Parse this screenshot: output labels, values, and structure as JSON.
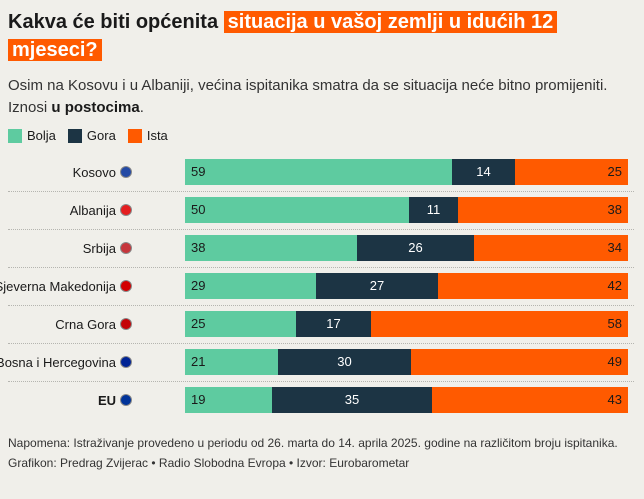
{
  "header": {
    "title_plain": "Kakva će biti općenita ",
    "title_highlight": "situacija u vašoj zemlji u idućih 12 mjeseci?",
    "subtitle_line1": "Osim na Kosovu i u Albaniji, većina ispitanika smatra da se situacija neće bitno promijeniti.",
    "subtitle_prefix": "Iznosi ",
    "subtitle_bold": "u postocima",
    "subtitle_suffix": "."
  },
  "colors": {
    "bolja": "#5ecba0",
    "gora": "#1c3444",
    "ista": "#ff5a00"
  },
  "flag_colors": {
    "Kosovo": "#244aa5",
    "Albanija": "#e41e20",
    "Srbija": "#c6363c",
    "Sjeverna Makedonija": "#d20000",
    "Crna Gora": "#c40308",
    "Bosna i Hercegovina": "#002395",
    "EU": "#003399"
  },
  "footer": {
    "note": "Napomena: Istraživanje provedeno u periodu od 26. marta do 14. aprila 2025. godine na različitom broju ispitanika.",
    "credits": "Grafikon: Predrag Zvijerac • Radio Slobodna Evropa • Izvor: Eurobarometar"
  },
  "chart_data": {
    "type": "bar",
    "stacked": true,
    "orientation": "horizontal",
    "categories": [
      "Kosovo",
      "Albanija",
      "Srbija",
      "Sjeverna Makedonija",
      "Crna Gora",
      "Bosna i Hercegovina",
      "EU"
    ],
    "bold_categories": [
      "EU"
    ],
    "series": [
      {
        "name": "Bolja",
        "values": [
          59,
          50,
          38,
          29,
          25,
          21,
          19
        ]
      },
      {
        "name": "Gora",
        "values": [
          14,
          11,
          26,
          27,
          17,
          30,
          35
        ]
      },
      {
        "name": "Ista",
        "values": [
          25,
          38,
          34,
          42,
          58,
          49,
          43
        ]
      }
    ],
    "legend_position": "top-left"
  }
}
